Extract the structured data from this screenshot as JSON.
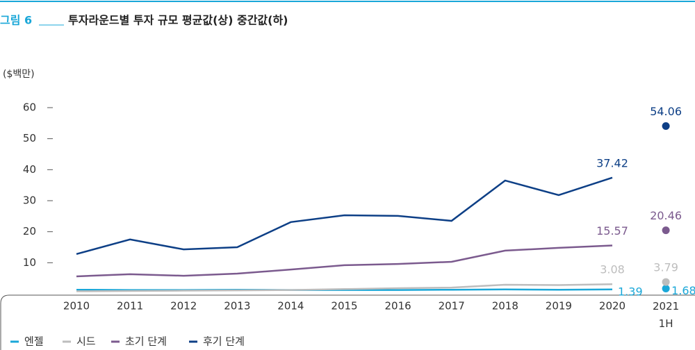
{
  "chart_data": {
    "type": "line",
    "figure_label": "그림 6",
    "title": "투자라운드별 투자 규모 평균값(상) 중간값(하)",
    "y_label": "($백만)",
    "categories": [
      "2010",
      "2011",
      "2012",
      "2013",
      "2014",
      "2015",
      "2016",
      "2017",
      "2018",
      "2019",
      "2020",
      "2021 1H"
    ],
    "series": [
      {
        "name": "엔젤",
        "color": "#1aa7d8",
        "values": [
          1.3,
          1.2,
          1.2,
          1.3,
          1.2,
          1.2,
          1.2,
          1.3,
          1.4,
          1.3,
          1.39,
          1.68
        ]
      },
      {
        "name": "시드",
        "color": "#bdbdbd",
        "values": [
          0.8,
          0.9,
          1.0,
          1.1,
          1.2,
          1.5,
          1.8,
          2.0,
          2.9,
          2.8,
          3.08,
          3.79
        ]
      },
      {
        "name": "초기 단계",
        "color": "#7b5a8e",
        "values": [
          5.6,
          6.3,
          5.8,
          6.5,
          7.8,
          9.2,
          9.6,
          10.3,
          13.9,
          14.8,
          15.57,
          20.46
        ]
      },
      {
        "name": "후기 단계",
        "color": "#0d3f86",
        "values": [
          12.8,
          17.5,
          14.3,
          15.0,
          23.1,
          25.3,
          25.1,
          23.5,
          36.5,
          31.8,
          37.42,
          54.06
        ]
      }
    ],
    "ylim": [
      0,
      60
    ],
    "yticks": [
      10,
      20,
      30,
      40,
      50,
      60
    ]
  }
}
